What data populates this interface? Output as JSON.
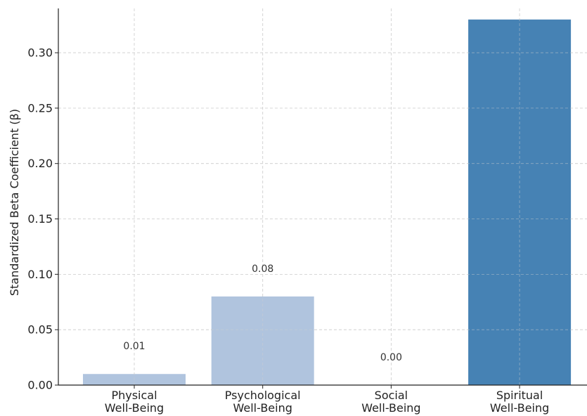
{
  "chart_data": {
    "type": "bar",
    "title": "",
    "xlabel": "",
    "ylabel": "Standardized Beta Coefficient (β)",
    "categories": [
      [
        "Physical",
        "Well-Being"
      ],
      [
        "Psychological",
        "Well-Being"
      ],
      [
        "Social",
        "Well-Being"
      ],
      [
        "Spiritual",
        "Well-Being"
      ]
    ],
    "values": [
      0.01,
      0.08,
      0.0,
      0.33
    ],
    "data_labels": [
      "0.01",
      "0.08",
      "0.00",
      ""
    ],
    "colors": [
      "#b0c4de",
      "#b0c4de",
      "#b0c4de",
      "#4682b4"
    ],
    "ylim": [
      0,
      0.34
    ],
    "yticks": [
      0.0,
      0.05,
      0.1,
      0.15,
      0.2,
      0.25,
      0.3
    ],
    "ytick_labels": [
      "0.00",
      "0.05",
      "0.10",
      "0.15",
      "0.20",
      "0.25",
      "0.30"
    ],
    "grid": true,
    "legend": "none"
  }
}
